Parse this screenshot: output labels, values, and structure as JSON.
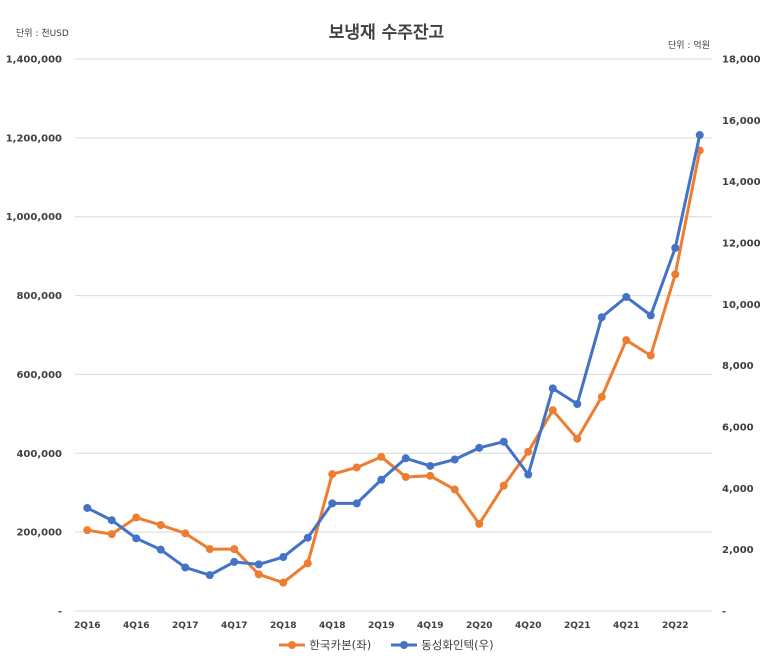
{
  "chart_data": {
    "type": "line",
    "title": "보냉재 수주잔고",
    "left_unit": "단위 : 천USD",
    "right_unit": "단위 : 억원",
    "categories": [
      "2Q16",
      "3Q16",
      "4Q16",
      "1Q17",
      "2Q17",
      "3Q17",
      "4Q17",
      "1Q18",
      "2Q18",
      "3Q18",
      "4Q18",
      "1Q19",
      "2Q19",
      "3Q19",
      "4Q19",
      "1Q20",
      "2Q20",
      "3Q20",
      "4Q20",
      "1Q21",
      "2Q21",
      "3Q21",
      "4Q21",
      "1Q22",
      "2Q22",
      "3Q22"
    ],
    "x_tick_labels": [
      "2Q16",
      "4Q16",
      "2Q17",
      "4Q17",
      "2Q18",
      "4Q18",
      "2Q19",
      "4Q19",
      "2Q20",
      "4Q20",
      "2Q21",
      "4Q21",
      "2Q22"
    ],
    "y_left": {
      "range": [
        0,
        1400000
      ],
      "ticks": [
        0,
        200000,
        400000,
        600000,
        800000,
        1000000,
        1200000,
        1400000
      ],
      "tick_labels": [
        "-",
        "200,000",
        "400,000",
        "600,000",
        "800,000",
        "1,000,000",
        "1,200,000",
        "1,400,000"
      ]
    },
    "y_right": {
      "range": [
        0,
        18000
      ],
      "ticks": [
        0,
        2000,
        4000,
        6000,
        8000,
        10000,
        12000,
        14000,
        16000,
        18000
      ],
      "tick_labels": [
        "-",
        "2,000",
        "4,000",
        "6,000",
        "8,000",
        "10,000",
        "12,000",
        "14,000",
        "16,000",
        "18,000"
      ]
    },
    "grid": true,
    "legend_position": "bottom",
    "series": [
      {
        "name": "한국카본(좌)",
        "axis": "left",
        "color": "#ED7D31",
        "values": [
          205000,
          195000,
          237000,
          218000,
          197000,
          157000,
          157000,
          93000,
          72000,
          121000,
          347000,
          364000,
          391000,
          340000,
          343000,
          308000,
          221000,
          318000,
          404000,
          509000,
          437000,
          543000,
          687000,
          648000,
          854000,
          1168000
        ]
      },
      {
        "name": "동성화인텍(우)",
        "axis": "right",
        "color": "#4472C4",
        "values": [
          3360,
          2960,
          2370,
          2000,
          1420,
          1170,
          1600,
          1520,
          1760,
          2390,
          3510,
          3510,
          4280,
          4980,
          4730,
          4940,
          5320,
          5520,
          4450,
          7260,
          6750,
          9580,
          10240,
          9640,
          11840,
          15520
        ]
      }
    ]
  }
}
